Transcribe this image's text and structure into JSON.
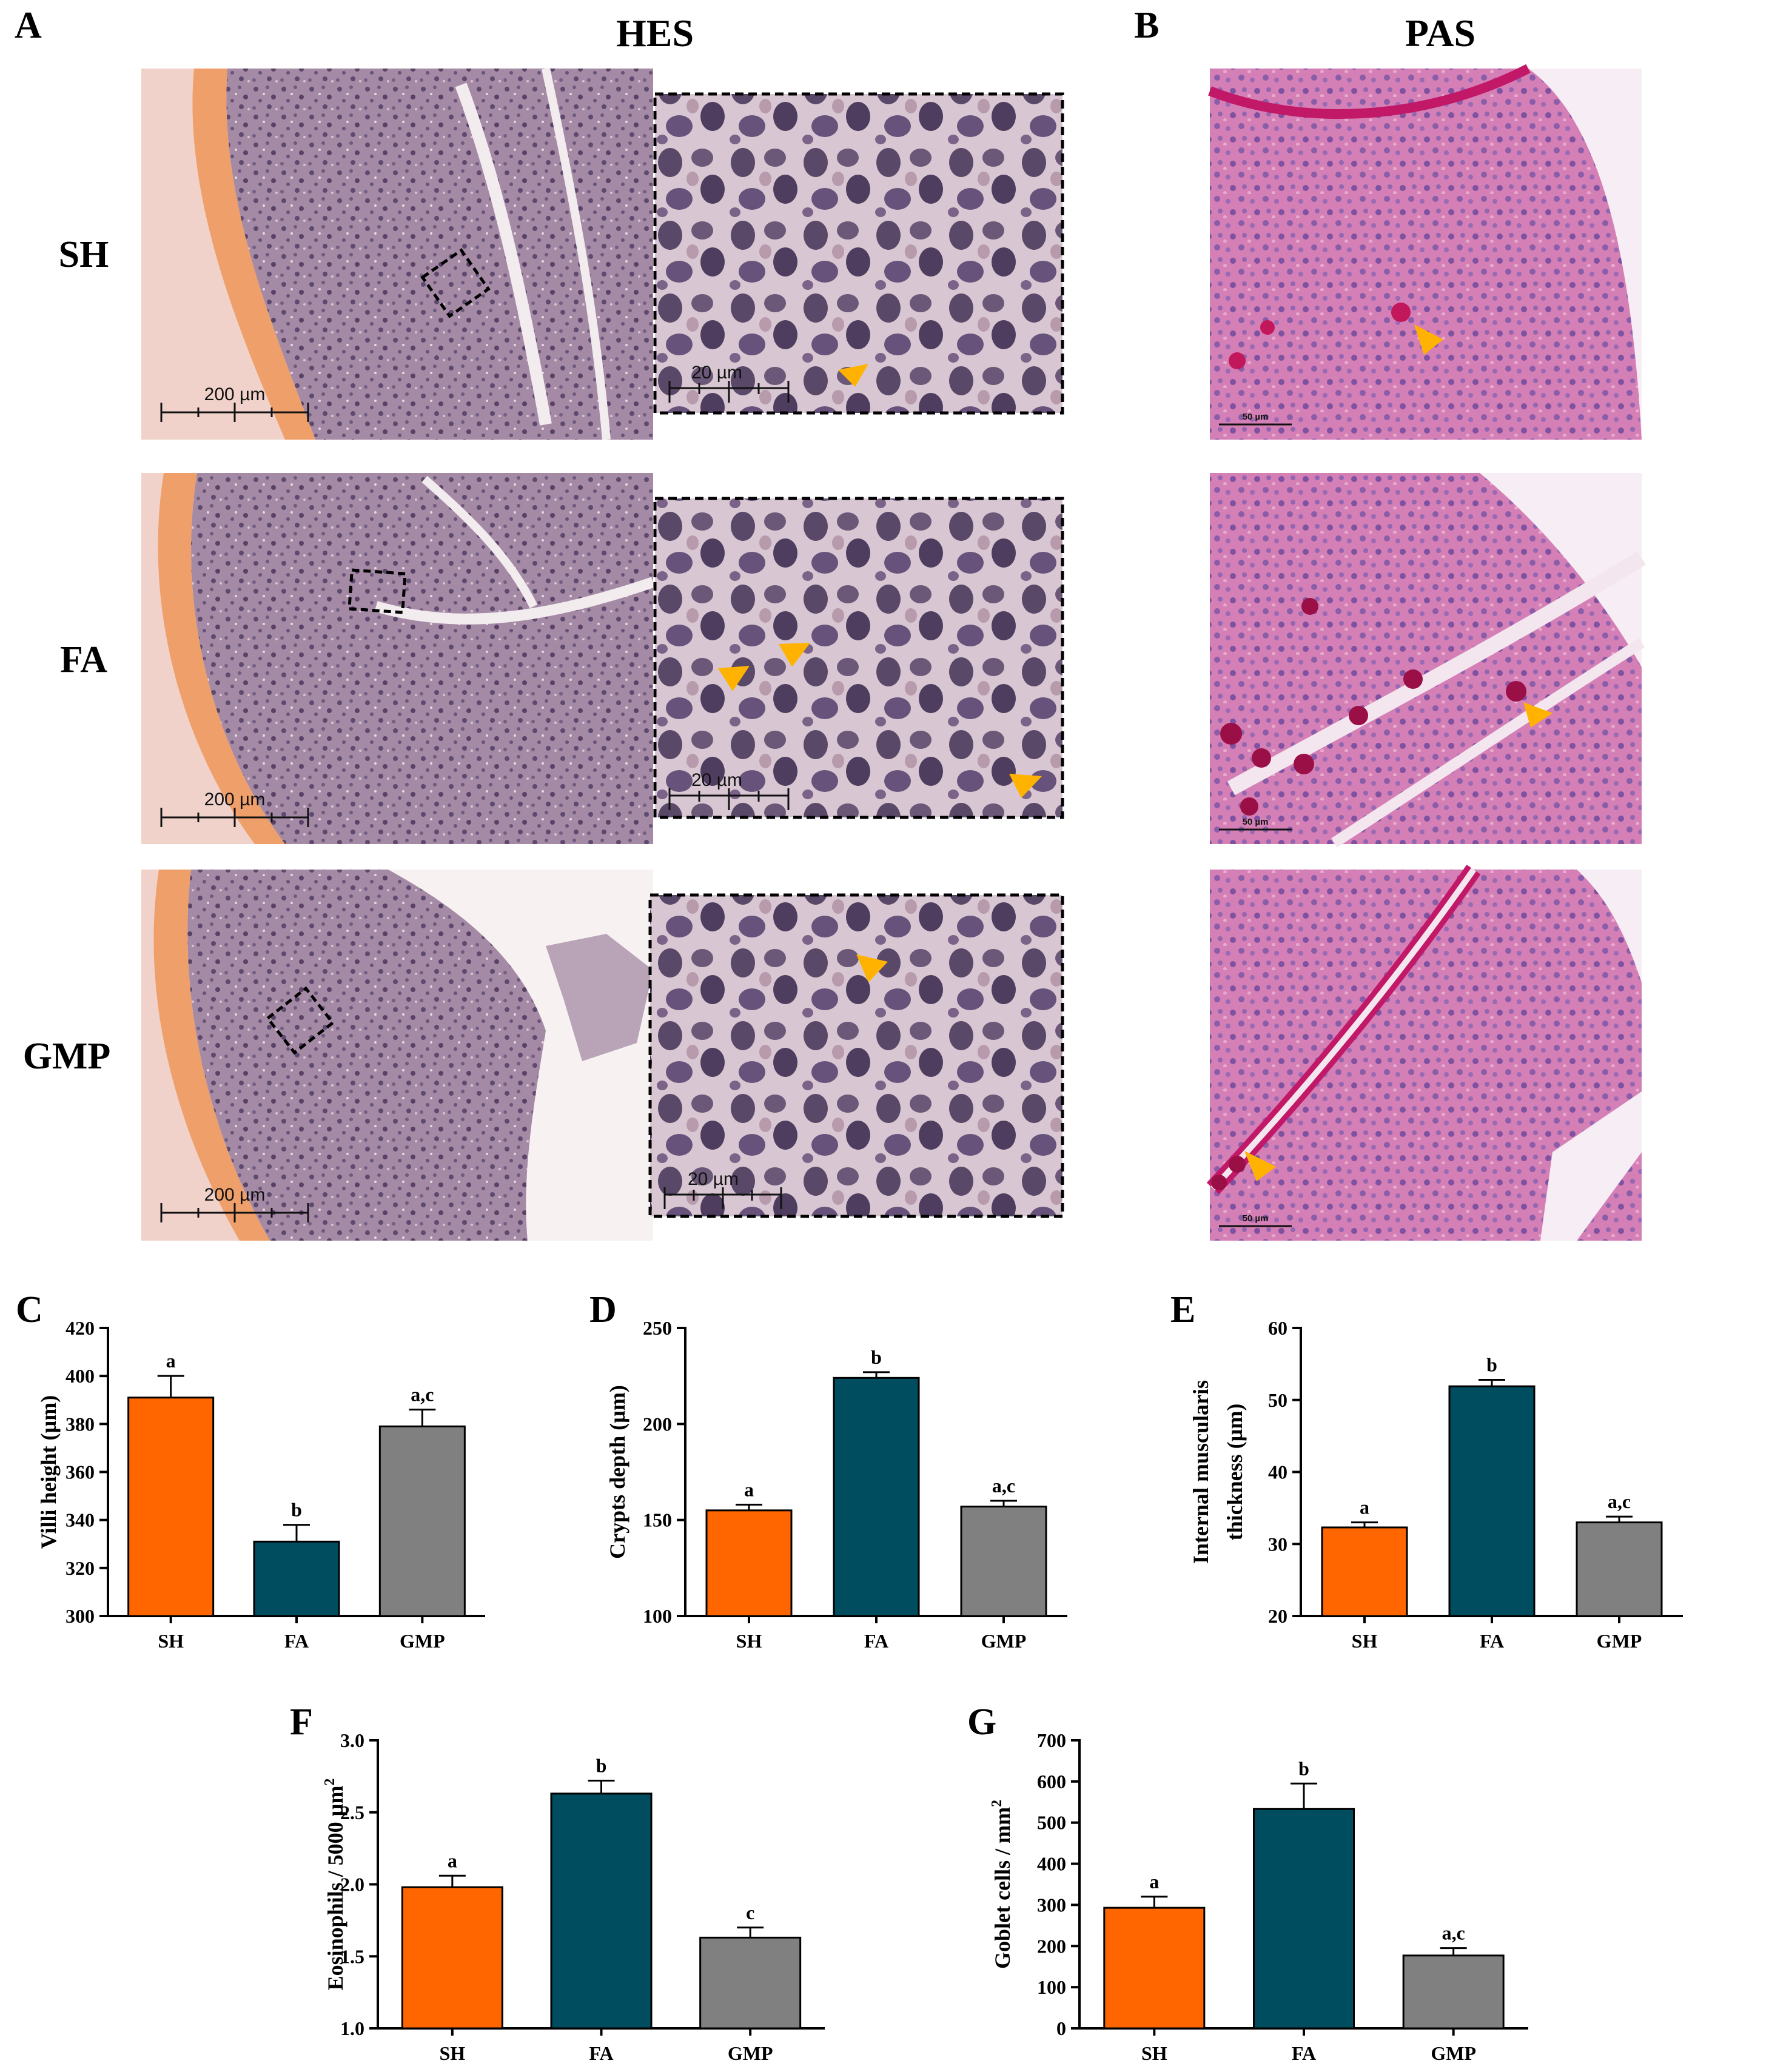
{
  "figure": {
    "panel_letters": [
      "A",
      "B"
    ],
    "column_titles": {
      "hes": "HES",
      "pas": "PAS"
    },
    "row_labels": [
      "SH",
      "FA",
      "GMP"
    ],
    "scale_bars": {
      "overview": "200 µm",
      "zoom": "20 µm",
      "pas": "50 µm"
    },
    "colors": {
      "SH": "#ff6600",
      "FA": "#004d5f",
      "GMP": "#808080",
      "arrow": "#ffb300"
    }
  },
  "chart_data": [
    {
      "panel": "C",
      "type": "bar",
      "categories": [
        "SH",
        "FA",
        "GMP"
      ],
      "values": [
        391,
        331,
        379
      ],
      "errors": [
        9,
        7,
        7
      ],
      "labels": [
        "a",
        "b",
        "a,c"
      ],
      "ylabel": "Villi height (µm)",
      "ylim": [
        300,
        420
      ],
      "yticks": [
        300,
        320,
        340,
        360,
        380,
        400,
        420
      ],
      "grid": false,
      "legend": "none"
    },
    {
      "panel": "D",
      "type": "bar",
      "categories": [
        "SH",
        "FA",
        "GMP"
      ],
      "values": [
        155,
        224,
        157
      ],
      "errors": [
        3,
        3,
        3
      ],
      "labels": [
        "a",
        "b",
        "a,c"
      ],
      "ylabel": "Crypts depth (µm)",
      "ylim": [
        100,
        250
      ],
      "yticks": [
        100,
        150,
        200,
        250
      ],
      "grid": false,
      "legend": "none"
    },
    {
      "panel": "E",
      "type": "bar",
      "categories": [
        "SH",
        "FA",
        "GMP"
      ],
      "values": [
        32.3,
        51.9,
        33.0
      ],
      "errors": [
        0.7,
        0.9,
        0.8
      ],
      "labels": [
        "a",
        "b",
        "a,c"
      ],
      "ylabel": "Internal muscularis",
      "ylabel2": "thickness (µm)",
      "ylim": [
        20,
        60
      ],
      "yticks": [
        20,
        30,
        40,
        50,
        60
      ],
      "grid": false,
      "legend": "none"
    },
    {
      "panel": "F",
      "type": "bar",
      "categories": [
        "SH",
        "FA",
        "GMP"
      ],
      "values": [
        1.98,
        2.63,
        1.63
      ],
      "errors": [
        0.08,
        0.09,
        0.07
      ],
      "labels": [
        "a",
        "b",
        "c"
      ],
      "ylabel": "Eosinophils / 5000 µm",
      "ylabel_sup": "2",
      "ylim": [
        1.0,
        3.0
      ],
      "yticks": [
        1.0,
        1.5,
        2.0,
        2.5,
        3.0
      ],
      "tick_decimals": 1,
      "grid": false,
      "legend": "none"
    },
    {
      "panel": "G",
      "type": "bar",
      "categories": [
        "SH",
        "FA",
        "GMP"
      ],
      "values": [
        293,
        533,
        177
      ],
      "errors": [
        27,
        62,
        18
      ],
      "labels": [
        "a",
        "b",
        "a,c"
      ],
      "ylabel": "Goblet cells / mm",
      "ylabel_sup": "2",
      "ylim": [
        0,
        700
      ],
      "yticks": [
        0,
        100,
        200,
        300,
        400,
        500,
        600,
        700
      ],
      "grid": false,
      "legend": "none"
    }
  ]
}
